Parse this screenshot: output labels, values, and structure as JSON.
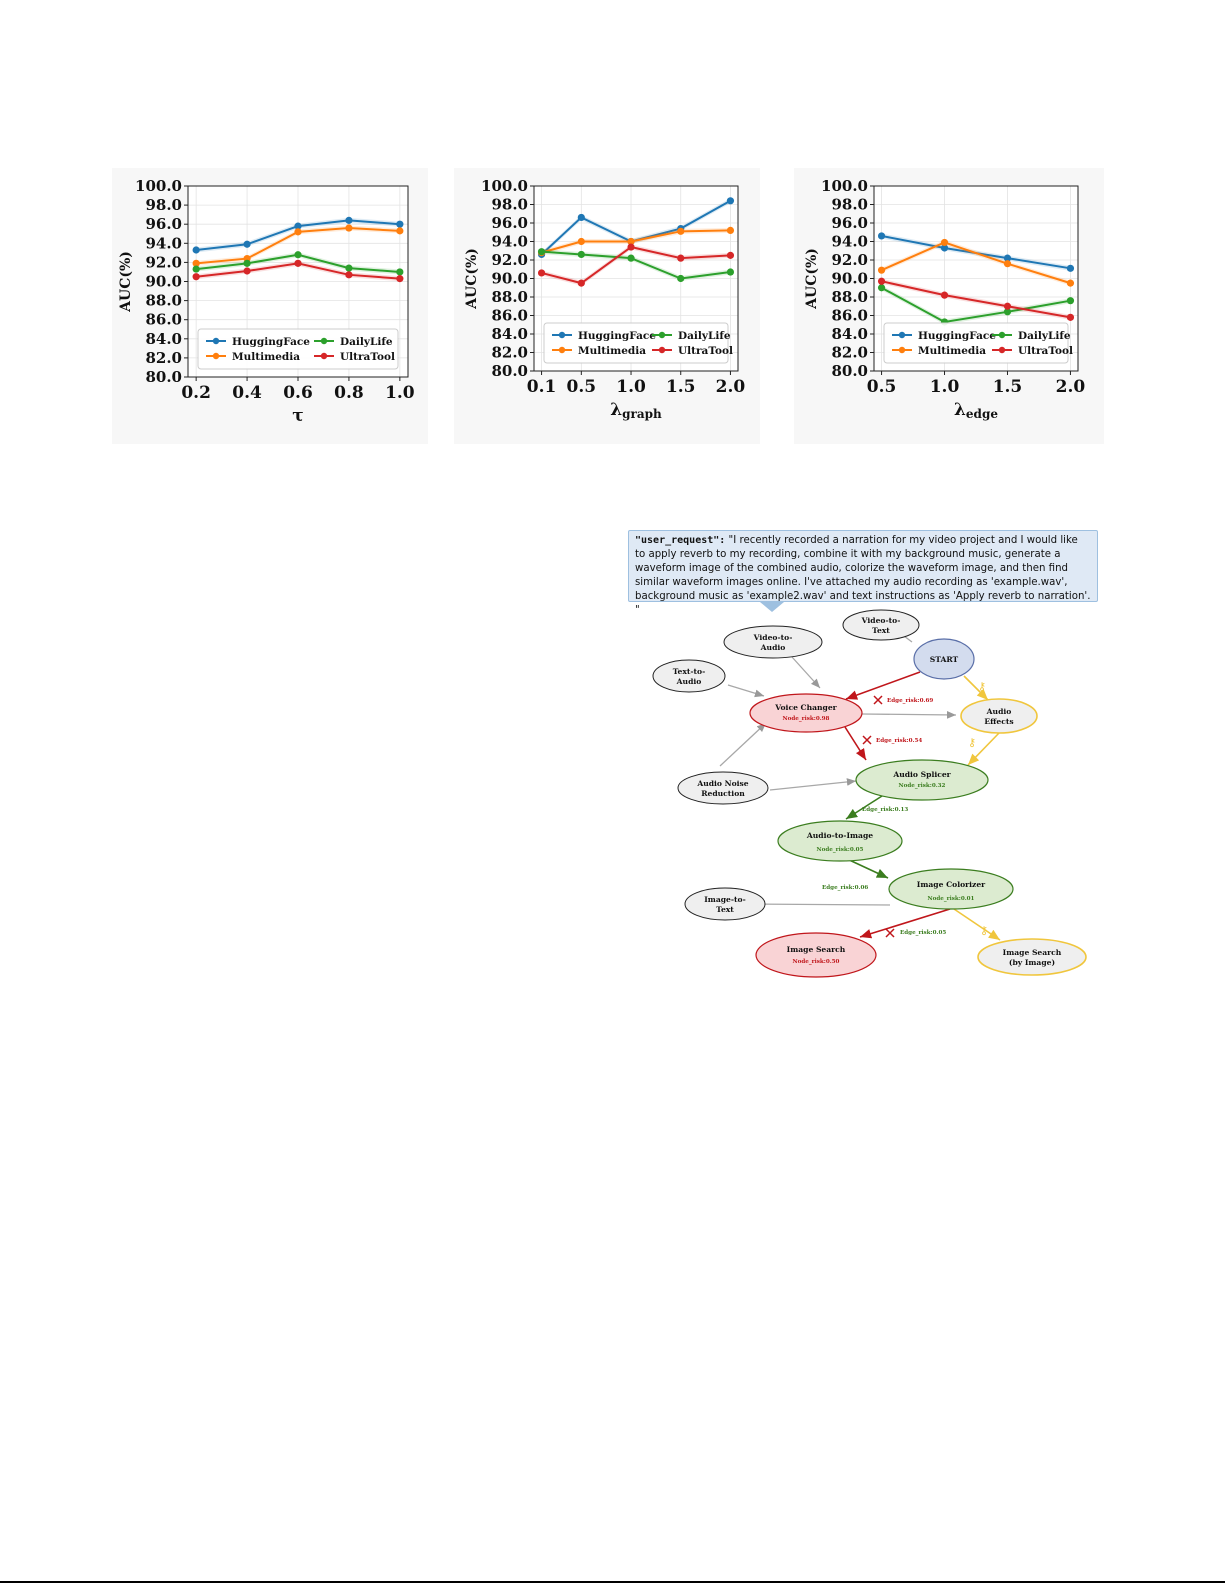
{
  "chart_data": [
    {
      "type": "line",
      "x": [
        0.2,
        0.4,
        0.6,
        0.8,
        1.0
      ],
      "xticks": [
        "0.2",
        "0.4",
        "0.6",
        "0.8",
        "1.0"
      ],
      "xlabel": "τ",
      "xlabel_sub": "",
      "ylabel": "AUC(%)",
      "ylim": [
        80,
        100
      ],
      "yticks": [
        "80.0",
        "82.0",
        "84.0",
        "86.0",
        "88.0",
        "90.0",
        "92.0",
        "94.0",
        "96.0",
        "98.0",
        "100.0"
      ],
      "grid": true,
      "legend": "lower",
      "series": [
        {
          "name": "HuggingFace",
          "color": "#1f77b4",
          "values": [
            93.3,
            93.9,
            95.8,
            96.4,
            96.0
          ]
        },
        {
          "name": "Multimedia",
          "color": "#ff7f0e",
          "values": [
            91.9,
            92.4,
            95.2,
            95.6,
            95.3
          ]
        },
        {
          "name": "DailyLife",
          "color": "#2ca02c",
          "values": [
            91.3,
            91.9,
            92.8,
            91.4,
            91.0
          ]
        },
        {
          "name": "UltraTool",
          "color": "#d62728",
          "values": [
            90.5,
            91.1,
            91.9,
            90.7,
            90.3
          ]
        }
      ]
    },
    {
      "type": "line",
      "x": [
        0.1,
        0.5,
        1.0,
        1.5,
        2.0
      ],
      "xticks": [
        "0.1",
        "0.5",
        "1.0",
        "1.5",
        "2.0"
      ],
      "xlabel": "λ",
      "xlabel_sub": "graph",
      "ylabel": "AUC(%)",
      "ylim": [
        80,
        100
      ],
      "yticks": [
        "80.0",
        "82.0",
        "84.0",
        "86.0",
        "88.0",
        "90.0",
        "92.0",
        "94.0",
        "96.0",
        "98.0",
        "100.0"
      ],
      "grid": true,
      "legend": "lower",
      "series": [
        {
          "name": "HuggingFace",
          "color": "#1f77b4",
          "values": [
            92.6,
            96.6,
            94.0,
            95.4,
            98.4
          ]
        },
        {
          "name": "Multimedia",
          "color": "#ff7f0e",
          "values": [
            92.8,
            94.0,
            94.0,
            95.1,
            95.2
          ]
        },
        {
          "name": "DailyLife",
          "color": "#2ca02c",
          "values": [
            92.9,
            92.6,
            92.2,
            90.0,
            90.7
          ]
        },
        {
          "name": "UltraTool",
          "color": "#d62728",
          "values": [
            90.6,
            89.5,
            93.4,
            92.2,
            92.5
          ]
        }
      ]
    },
    {
      "type": "line",
      "x": [
        0.5,
        1.0,
        1.5,
        2.0
      ],
      "xticks": [
        "0.5",
        "1.0",
        "1.5",
        "2.0"
      ],
      "xlabel": "λ",
      "xlabel_sub": "edge",
      "ylabel": "AUC(%)",
      "ylim": [
        80,
        100
      ],
      "yticks": [
        "80.0",
        "82.0",
        "84.0",
        "86.0",
        "88.0",
        "90.0",
        "92.0",
        "94.0",
        "96.0",
        "98.0",
        "100.0"
      ],
      "grid": true,
      "legend": "lower",
      "series": [
        {
          "name": "HuggingFace",
          "color": "#1f77b4",
          "values": [
            94.6,
            93.3,
            92.2,
            91.1
          ]
        },
        {
          "name": "Multimedia",
          "color": "#ff7f0e",
          "values": [
            90.9,
            93.9,
            91.6,
            89.5
          ]
        },
        {
          "name": "DailyLife",
          "color": "#2ca02c",
          "values": [
            89.0,
            85.3,
            86.4,
            87.6
          ]
        },
        {
          "name": "UltraTool",
          "color": "#d62728",
          "values": [
            89.7,
            88.2,
            87.0,
            85.8
          ]
        }
      ]
    }
  ],
  "diagram": {
    "user_request_key": "\"user_request\":",
    "user_request_text": " \"I recently recorded a narration for my video project and I would like to apply reverb to my recording, combine it with my background music, generate a waveform image of the combined audio, colorize the waveform image, and then find similar waveform images online. I've attached my audio recording as 'example.wav', background music as 'example2.wav' and text instructions as 'Apply reverb to narration'. \"",
    "nodes": {
      "video_to_text": [
        "Video-to-",
        "Text"
      ],
      "video_to_audio": [
        "Video-to-",
        "Audio"
      ],
      "start": "START",
      "text_to_audio": [
        "Text-to-",
        "Audio"
      ],
      "voice_changer": "Voice Changer",
      "voice_changer_risk": "Node_risk:0.98",
      "audio_effects": [
        "Audio",
        "Effects"
      ],
      "audio_splicer": "Audio Splicer",
      "audio_splicer_risk": "Node_risk:0.32",
      "audio_noise_reduction": [
        "Audio Noise",
        "Reduction"
      ],
      "audio_to_image": "Audio-to-Image",
      "audio_to_image_risk": "Node_risk:0.05",
      "image_colorizer": "Image Colorizer",
      "image_colorizer_risk": "Node_risk:0.01",
      "image_to_text": [
        "Image-to-",
        "Text"
      ],
      "image_search": "Image Search",
      "image_search_risk": "Node_risk:0.50",
      "image_search_by_image": [
        "Image Search",
        "(by Image)"
      ]
    },
    "edges": {
      "start_voice": "Edge_risk:0.69",
      "voice_splicer": "Edge_risk:0.54",
      "splicer_a2i": "Edge_risk:0.13",
      "a2i_colorizer": "Edge_risk:0.06",
      "colorizer_search": "Edge_risk:0.05"
    },
    "colors": {
      "risk_red": "#c0161b",
      "safe_green": "#3b7d1f",
      "red_fill": "#f9d3d5",
      "green_fill": "#dcebd0",
      "blue_fill": "#d3dcee",
      "yellow_border": "#f0c63d",
      "grey_fill": "#efefef"
    }
  }
}
